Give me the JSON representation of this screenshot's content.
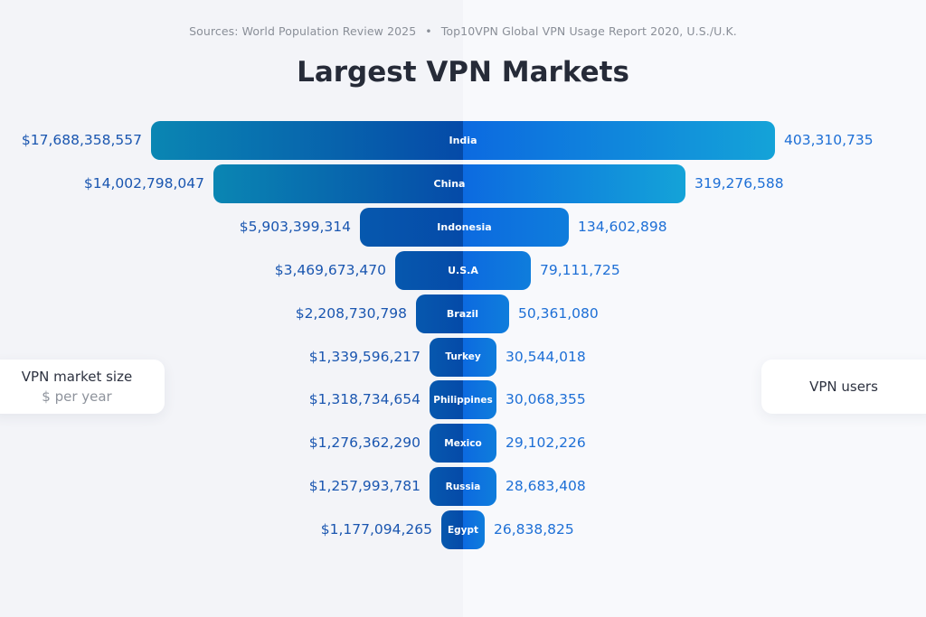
{
  "header": {
    "source_1": "Sources: World Population Review 2025",
    "separator": "•",
    "source_2": "Top10VPN Global VPN Usage Report 2020, U.S./U.K.",
    "title": "Largest VPN Markets"
  },
  "legend": {
    "left": {
      "title": "VPN market size",
      "subtitle": "$ per year"
    },
    "right": {
      "title": "VPN users"
    }
  },
  "colors": {
    "bg_left": "#f3f4f8",
    "bg_right": "#f8f9fc",
    "bar_left_outer": "#0a86b3",
    "bar_left_inner": "#054aa8",
    "bar_right_inner": "#0c6ae0",
    "bar_right_outer": "#14a3d8",
    "value_left": "#1a56b0",
    "value_right": "#1d6fd6"
  },
  "rows": [
    {
      "country": "India",
      "market": "$17,688,358,557",
      "users": "403,310,735"
    },
    {
      "country": "China",
      "market": "$14,002,798,047",
      "users": "319,276,588"
    },
    {
      "country": "Indonesia",
      "market": "$5,903,399,314",
      "users": "134,602,898"
    },
    {
      "country": "U.S.A",
      "market": "$3,469,673,470",
      "users": "79,111,725"
    },
    {
      "country": "Brazil",
      "market": "$2,208,730,798",
      "users": "50,361,080"
    },
    {
      "country": "Turkey",
      "market": "$1,339,596,217",
      "users": "30,544,018"
    },
    {
      "country": "Philippines",
      "market": "$1,318,734,654",
      "users": "30,068,355"
    },
    {
      "country": "Mexico",
      "market": "$1,276,362,290",
      "users": "29,102,226"
    },
    {
      "country": "Russia",
      "market": "$1,257,993,781",
      "users": "28,683,408"
    },
    {
      "country": "Egypt",
      "market": "$1,177,094,265",
      "users": "26,838,825"
    }
  ],
  "chart_data": {
    "type": "bar",
    "subtype": "diverging-funnel",
    "title": "Largest VPN Markets",
    "subtitle": "Sources: World Population Review 2025 • Top10VPN Global VPN Usage Report 2020, U.S./U.K.",
    "categories": [
      "India",
      "China",
      "Indonesia",
      "U.S.A",
      "Brazil",
      "Turkey",
      "Philippines",
      "Mexico",
      "Russia",
      "Egypt"
    ],
    "series": [
      {
        "name": "VPN market size ($ per year)",
        "side": "left",
        "values": [
          17688358557,
          14002798047,
          5903399314,
          3469673470,
          2208730798,
          1339596217,
          1318734654,
          1276362290,
          1257993781,
          1177094265
        ]
      },
      {
        "name": "VPN users",
        "side": "right",
        "values": [
          403310735,
          319276588,
          134602898,
          79111725,
          50361080,
          30544018,
          30068355,
          29102226,
          28683408,
          26838825
        ]
      }
    ],
    "legend": [
      "VPN market size ($ per year)",
      "VPN users"
    ],
    "legend_position": "sides",
    "grid": false,
    "xlabel": "",
    "ylabel": ""
  }
}
